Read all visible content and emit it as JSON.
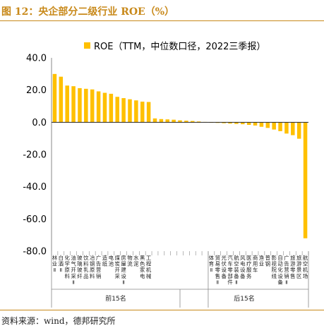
{
  "figure": {
    "title": "图 12：央企部分二级行业 ROE（%）",
    "source": "资料来源：wind，德邦研究所"
  },
  "chart_data": {
    "type": "bar",
    "legend": {
      "position": "top",
      "entries": [
        "ROE（TTM，中位数口径，2022三季报）"
      ]
    },
    "color": "#ffc000",
    "ylim": [
      -80,
      40
    ],
    "yticks": [
      "40.0",
      "20.0",
      "0.0",
      "-20.0",
      "-40.0",
      "-60.0",
      "-80.0"
    ],
    "ytick_values": [
      40,
      20,
      0,
      -20,
      -40,
      -60,
      -80
    ],
    "categories": [
      "林业Ⅱ",
      "白酒Ⅱ",
      "化学原料",
      "油气开采Ⅱ",
      "玻璃玻纤",
      "饮料乳品",
      "冶钢原料",
      "广告营销",
      "造纸",
      "电池",
      "煤炭开采",
      "房屋建设Ⅱ",
      "物流",
      "水泥",
      "黑色家电",
      "工程机械",
      "",
      "",
      "",
      "",
      "",
      "",
      "",
      "",
      "",
      "体育Ⅱ",
      "贸易零售Ⅱ",
      "光伏设备",
      "汽车零部件",
      "航空装备Ⅱ",
      "风电设备",
      "医疗服务",
      "商用车",
      "渔业",
      "普钢",
      "影视院线",
      "自动化设备",
      "广告营销Ⅱ",
      "旅游零售",
      "旅游景区",
      "航空机场"
    ],
    "values": [
      30.0,
      28.3,
      22.8,
      22.4,
      21.2,
      20.8,
      20.4,
      19.2,
      18.3,
      17.7,
      15.8,
      15.0,
      14.3,
      13.6,
      12.8,
      12.6,
      2.4,
      2.0,
      1.8,
      1.6,
      1.2,
      1.0,
      0.8,
      0.5,
      0.2,
      -0.2,
      -0.4,
      -0.6,
      -0.8,
      -1.0,
      -1.2,
      -1.6,
      -2.0,
      -2.8,
      -3.5,
      -4.5,
      -5.5,
      -7.0,
      -8.0,
      -10.2,
      -72.0
    ],
    "groups": [
      {
        "label": "前15名",
        "start": 0,
        "end": 15
      },
      {
        "label": "后15名",
        "start": 25,
        "end": 40
      }
    ]
  }
}
